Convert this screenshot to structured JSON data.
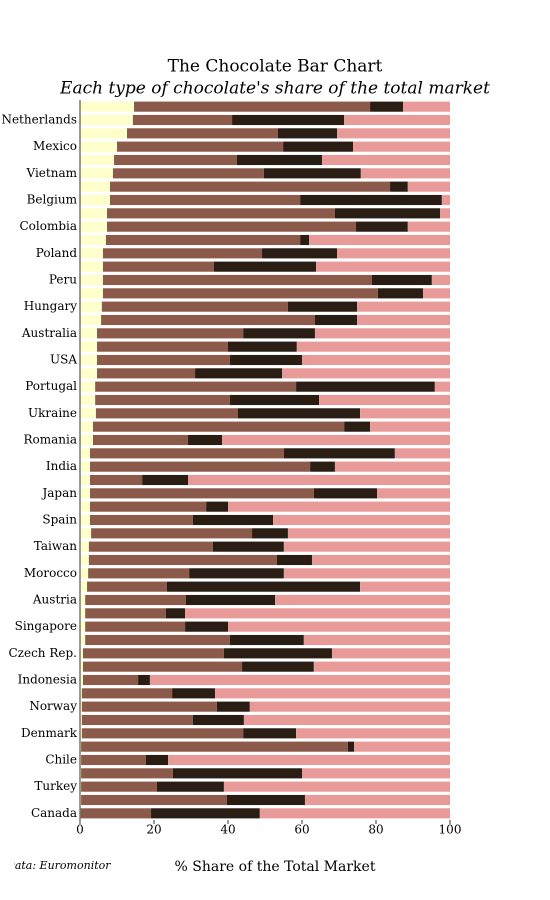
{
  "chart_data": {
    "type": "stacked-barh",
    "title": "The Chocolate Bar Chart",
    "subtitle": "Each type of chocolate's share of the total market",
    "xlabel": "% Share of the Total Market",
    "note": "Data: Euromonitor",
    "categories": [
      null,
      "Netherlands",
      null,
      "Mexico",
      null,
      "Vietnam",
      null,
      "Belgium",
      null,
      "Colombia",
      null,
      "Poland",
      null,
      "Peru",
      null,
      "Hungary",
      null,
      "Australia",
      null,
      "USA",
      null,
      "Portugal",
      null,
      "Ukraine",
      null,
      "Romania",
      null,
      "India",
      null,
      "Japan",
      null,
      "Spain",
      null,
      "Taiwan",
      null,
      "Morocco",
      null,
      "Austria",
      null,
      "Singapore",
      null,
      "Czech Rep.",
      null,
      "Indonesia",
      null,
      "Norway",
      null,
      "Denmark",
      null,
      "Chile",
      null,
      "Turkey",
      null,
      "Canada"
    ],
    "series": [
      {
        "color": "#ffffcc",
        "values": [
          14.6,
          14.3,
          12.7,
          10.0,
          9.2,
          8.9,
          8.1,
          8.1,
          7.3,
          7.3,
          7.0,
          6.2,
          6.2,
          6.2,
          6.2,
          5.9,
          5.7,
          4.6,
          4.6,
          4.6,
          4.6,
          4.1,
          4.1,
          4.3,
          3.5,
          3.5,
          2.7,
          2.7,
          2.7,
          2.7,
          2.7,
          2.7,
          3.0,
          2.4,
          2.4,
          2.2,
          1.9,
          1.4,
          1.4,
          1.4,
          1.4,
          0.8,
          0.8,
          0.8,
          0.5,
          0.5,
          0.5,
          0.5,
          0.3,
          0.3,
          0.3,
          0.3,
          0.3,
          0.2
        ]
      },
      {
        "color": "#8b5a4b",
        "values": [
          63.8,
          26.8,
          40.8,
          44.9,
          33.2,
          40.8,
          75.7,
          51.4,
          61.6,
          67.3,
          52.5,
          43.0,
          30.0,
          72.7,
          74.3,
          50.3,
          57.8,
          39.5,
          35.4,
          35.9,
          26.5,
          54.3,
          36.4,
          38.4,
          67.9,
          25.7,
          52.4,
          59.5,
          14.1,
          60.5,
          31.4,
          27.8,
          43.5,
          33.5,
          50.8,
          27.3,
          21.6,
          27.2,
          21.8,
          27.0,
          39.1,
          38.1,
          43.0,
          14.9,
          24.4,
          36.5,
          30.0,
          43.6,
          72.1,
          17.5,
          24.8,
          20.5,
          39.4,
          19.0
        ]
      },
      {
        "color": "#2a1e14",
        "values": [
          8.9,
          30.3,
          16.0,
          18.9,
          23.0,
          26.2,
          4.8,
          38.3,
          28.4,
          14.0,
          2.4,
          20.3,
          27.6,
          16.2,
          12.2,
          18.7,
          11.4,
          19.4,
          18.6,
          19.5,
          23.5,
          37.5,
          24.1,
          33.0,
          7.0,
          9.2,
          30.0,
          6.7,
          12.4,
          17.1,
          5.9,
          21.7,
          9.7,
          19.2,
          9.5,
          25.6,
          52.2,
          24.1,
          5.2,
          11.6,
          20.0,
          29.2,
          19.4,
          3.2,
          11.6,
          8.9,
          13.8,
          14.3,
          1.7,
          6.0,
          34.9,
          18.1,
          21.1,
          29.4
        ]
      },
      {
        "color": "#e89a98",
        "values": [
          12.7,
          28.6,
          30.5,
          26.2,
          34.6,
          24.1,
          11.4,
          2.2,
          2.7,
          11.4,
          38.1,
          30.5,
          36.2,
          4.9,
          7.3,
          25.1,
          25.1,
          36.5,
          41.4,
          40.0,
          45.4,
          4.1,
          35.4,
          24.3,
          21.6,
          61.6,
          14.9,
          31.1,
          70.8,
          19.7,
          60.0,
          47.8,
          43.8,
          44.9,
          37.3,
          44.9,
          24.3,
          47.3,
          71.6,
          60.0,
          39.5,
          31.9,
          36.8,
          81.1,
          63.5,
          54.1,
          55.7,
          41.6,
          25.9,
          76.2,
          40.0,
          61.1,
          39.2,
          51.4
        ]
      }
    ],
    "xlim": [
      0,
      100
    ],
    "xticks": [
      0,
      20,
      40,
      60,
      80,
      100
    ]
  }
}
